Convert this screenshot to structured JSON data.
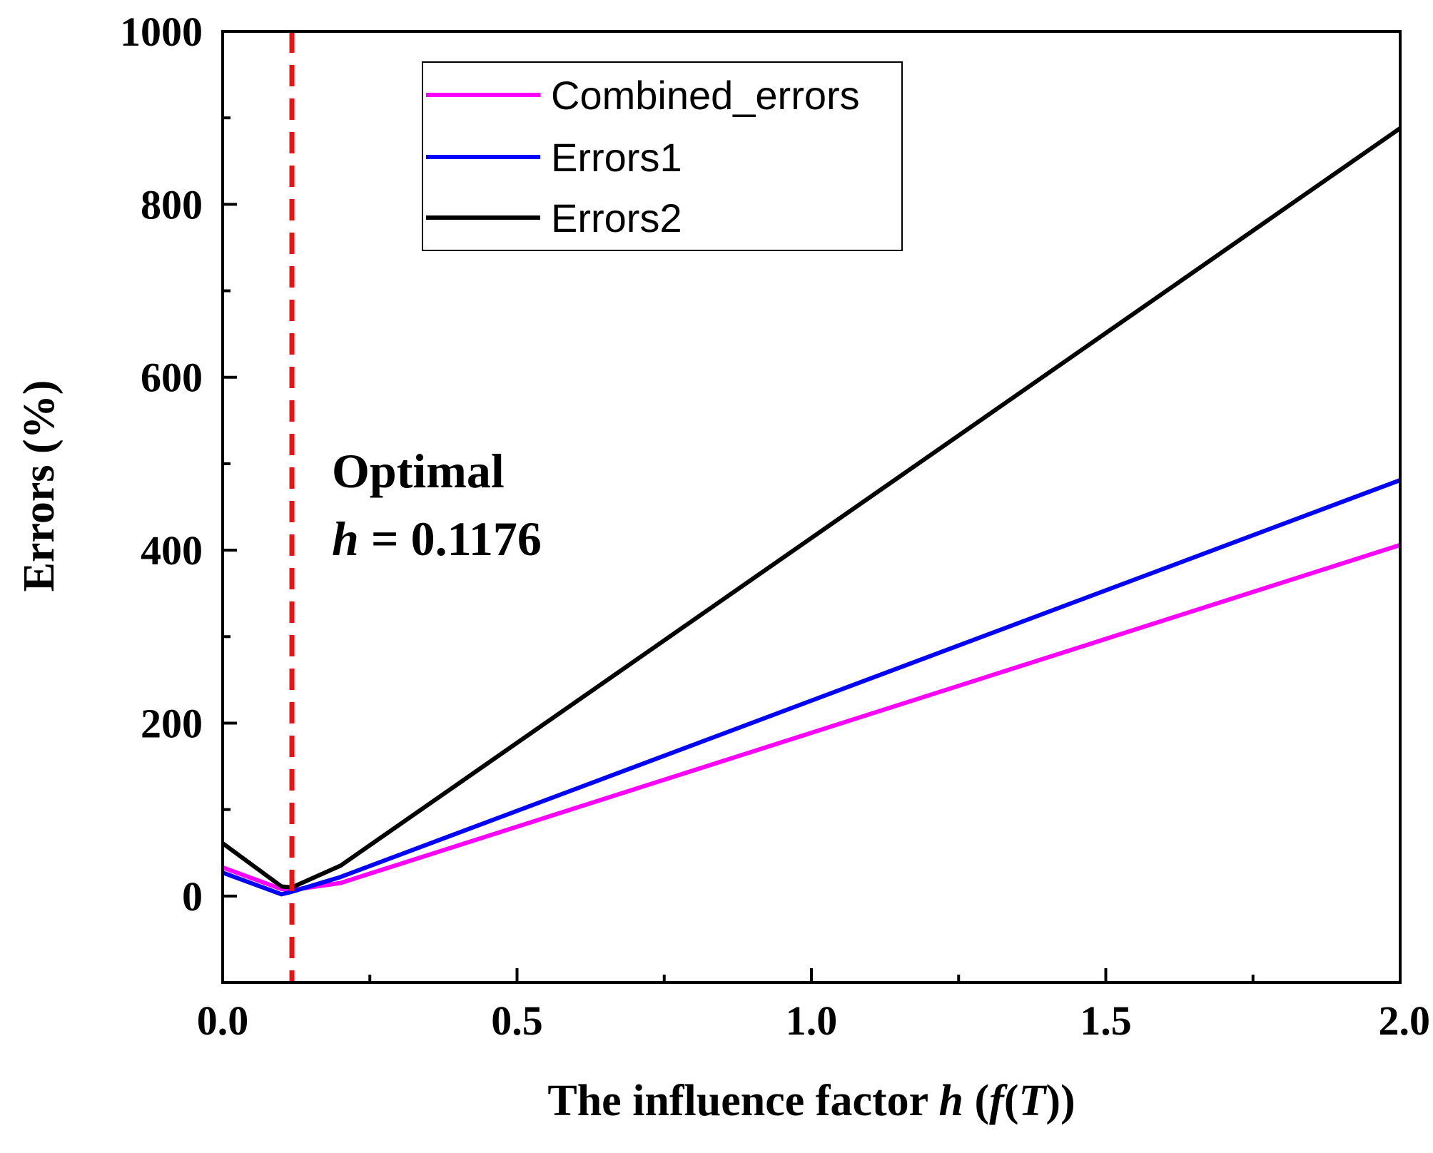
{
  "chart_data": {
    "type": "line",
    "xlabel": {
      "prefix": "The influence factor ",
      "h": "h",
      "open": " (",
      "f": "f",
      "paren": "(",
      "T": "T",
      "close": "))"
    },
    "ylabel": "Errors (%)",
    "xlim": [
      0.0,
      2.0
    ],
    "ylim": [
      -100,
      1000
    ],
    "xticks": [
      "0.0",
      "0.5",
      "1.0",
      "1.5",
      "2.0"
    ],
    "xtick_values": [
      0.0,
      0.5,
      1.0,
      1.5,
      2.0
    ],
    "xminor_values": [
      0.25,
      0.75,
      1.25,
      1.75
    ],
    "yticks": [
      "0",
      "200",
      "400",
      "600",
      "800",
      "1000"
    ],
    "ytick_values": [
      0,
      200,
      400,
      600,
      800,
      1000
    ],
    "yminor_values": [
      -100,
      100,
      300,
      500,
      700,
      900
    ],
    "series": [
      {
        "name": "Combined_errors",
        "color": "#ff00ff",
        "x": [
          0.0,
          0.1,
          0.1176,
          0.2,
          2.0
        ],
        "y": [
          33,
          8,
          7,
          15,
          406
        ]
      },
      {
        "name": "Errors1",
        "color": "#0000ff",
        "x": [
          0.0,
          0.1,
          0.1176,
          0.2,
          2.0
        ],
        "y": [
          27,
          2,
          5,
          22,
          481
        ]
      },
      {
        "name": "Errors2",
        "color": "#000000",
        "x": [
          0.0,
          0.1,
          0.1176,
          0.2,
          2.0
        ],
        "y": [
          61,
          11,
          10,
          35,
          888
        ]
      }
    ],
    "reference_line": {
      "x": 0.1176,
      "color": "#ee1111",
      "style": "dashed"
    },
    "annotation": {
      "line1": "Optimal",
      "line2_var": "h",
      "line2_rest": " = 0.1176"
    },
    "legend_position": "top-center"
  }
}
